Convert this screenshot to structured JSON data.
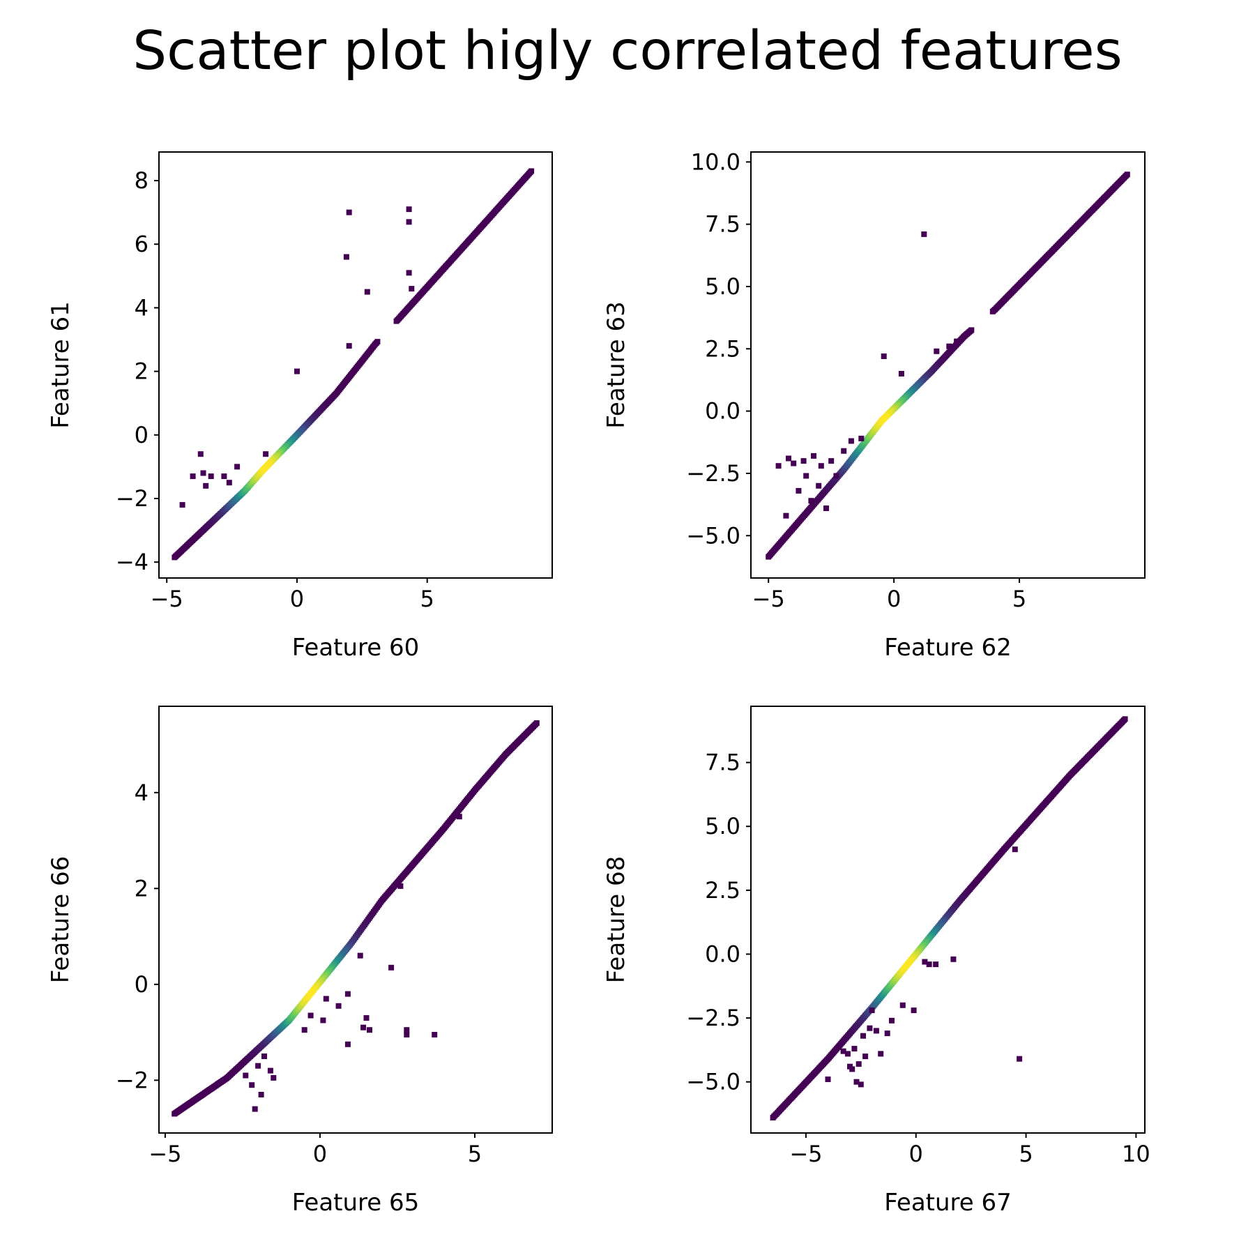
{
  "figure": {
    "suptitle": "Scatter plot higly correlated features"
  },
  "colormap": [
    "#440154",
    "#3b528b",
    "#21918c",
    "#5ec962",
    "#fde725"
  ],
  "chart_data": [
    {
      "type": "scatter",
      "xlabel": "Feature 60",
      "ylabel": "Feature 61",
      "xlim": [
        -5.3,
        9.8
      ],
      "ylim": [
        -4.5,
        8.9
      ],
      "xticks": [
        -5,
        0,
        5
      ],
      "yticks": [
        -4,
        -2,
        0,
        2,
        4,
        6,
        8
      ],
      "grid": false,
      "main_trend": [
        [
          -4.7,
          -3.85
        ],
        [
          -2.0,
          -1.75
        ],
        [
          -1.3,
          -1.1
        ],
        [
          0.0,
          0.0
        ],
        [
          1.5,
          1.3
        ],
        [
          3.0,
          2.85
        ],
        [
          3.9,
          3.65
        ],
        [
          9.0,
          8.3
        ]
      ],
      "gap_x": [
        3.1,
        3.8
      ],
      "density_peak_x": -1.2,
      "outliers": [
        [
          -4.4,
          -2.2
        ],
        [
          -4.0,
          -1.3
        ],
        [
          -3.7,
          -0.6
        ],
        [
          -3.6,
          -1.2
        ],
        [
          -3.5,
          -1.6
        ],
        [
          -3.3,
          -1.3
        ],
        [
          -2.8,
          -1.3
        ],
        [
          -2.6,
          -1.5
        ],
        [
          -2.3,
          -1.0
        ],
        [
          -1.2,
          -0.6
        ],
        [
          0.0,
          2.0
        ],
        [
          1.9,
          5.6
        ],
        [
          2.0,
          7.0
        ],
        [
          2.0,
          2.8
        ],
        [
          2.7,
          4.5
        ],
        [
          4.3,
          7.1
        ],
        [
          4.3,
          6.7
        ],
        [
          4.3,
          5.1
        ],
        [
          4.4,
          4.6
        ]
      ]
    },
    {
      "type": "scatter",
      "xlabel": "Feature 62",
      "ylabel": "Feature 63",
      "xlim": [
        -5.7,
        10.0
      ],
      "ylim": [
        -6.7,
        10.4
      ],
      "xticks": [
        -5,
        0,
        5
      ],
      "yticks": [
        -5.0,
        -2.5,
        0.0,
        2.5,
        5.0,
        7.5,
        10.0
      ],
      "grid": false,
      "main_trend": [
        [
          -5.0,
          -5.85
        ],
        [
          -2.0,
          -2.35
        ],
        [
          -0.5,
          -0.4
        ],
        [
          0.0,
          0.1
        ],
        [
          1.5,
          1.6
        ],
        [
          2.8,
          3.0
        ],
        [
          4.0,
          4.05
        ],
        [
          9.3,
          9.5
        ]
      ],
      "gap_x": [
        3.1,
        3.9
      ],
      "density_peak_x": -0.4,
      "outliers": [
        [
          -4.6,
          -2.2
        ],
        [
          -4.3,
          -4.2
        ],
        [
          -4.2,
          -1.9
        ],
        [
          -4.0,
          -2.1
        ],
        [
          -3.8,
          -3.2
        ],
        [
          -3.6,
          -2.0
        ],
        [
          -3.5,
          -2.6
        ],
        [
          -3.3,
          -3.6
        ],
        [
          -3.2,
          -1.8
        ],
        [
          -3.0,
          -3.0
        ],
        [
          -2.9,
          -2.2
        ],
        [
          -2.7,
          -3.9
        ],
        [
          -2.5,
          -2.0
        ],
        [
          -2.3,
          -2.6
        ],
        [
          -2.0,
          -1.6
        ],
        [
          -1.7,
          -1.2
        ],
        [
          -1.3,
          -1.1
        ],
        [
          -0.4,
          2.2
        ],
        [
          0.3,
          1.5
        ],
        [
          1.2,
          7.1
        ],
        [
          1.7,
          2.4
        ],
        [
          2.2,
          2.6
        ],
        [
          2.5,
          2.8
        ]
      ]
    },
    {
      "type": "scatter",
      "xlabel": "Feature 65",
      "ylabel": "Feature 66",
      "xlim": [
        -5.2,
        7.5
      ],
      "ylim": [
        -3.1,
        5.8
      ],
      "xticks": [
        -5,
        0,
        5
      ],
      "yticks": [
        -2,
        0,
        2,
        4
      ],
      "grid": false,
      "main_trend": [
        [
          -4.7,
          -2.7
        ],
        [
          -3.0,
          -1.95
        ],
        [
          -2.0,
          -1.35
        ],
        [
          -1.0,
          -0.75
        ],
        [
          0.0,
          0.05
        ],
        [
          1.0,
          0.85
        ],
        [
          2.0,
          1.75
        ],
        [
          3.0,
          2.5
        ],
        [
          4.0,
          3.25
        ],
        [
          5.0,
          4.05
        ],
        [
          6.0,
          4.8
        ],
        [
          7.0,
          5.45
        ]
      ],
      "gap_x": null,
      "density_peak_x": -0.3,
      "outliers": [
        [
          -2.4,
          -1.9
        ],
        [
          -2.2,
          -2.1
        ],
        [
          -2.1,
          -2.6
        ],
        [
          -2.0,
          -1.7
        ],
        [
          -1.9,
          -2.3
        ],
        [
          -1.8,
          -1.5
        ],
        [
          -1.6,
          -1.8
        ],
        [
          -1.5,
          -1.95
        ],
        [
          -0.5,
          -0.95
        ],
        [
          -0.3,
          -0.65
        ],
        [
          0.1,
          -0.75
        ],
        [
          0.2,
          -0.3
        ],
        [
          0.6,
          -0.45
        ],
        [
          0.9,
          -0.2
        ],
        [
          1.3,
          0.6
        ],
        [
          0.9,
          -1.25
        ],
        [
          1.4,
          -0.9
        ],
        [
          1.5,
          -0.7
        ],
        [
          1.6,
          -0.95
        ],
        [
          2.3,
          0.35
        ],
        [
          2.6,
          2.05
        ],
        [
          2.8,
          -0.95
        ],
        [
          2.8,
          -1.05
        ],
        [
          3.7,
          -1.05
        ],
        [
          4.5,
          3.5
        ]
      ]
    },
    {
      "type": "scatter",
      "xlabel": "Feature 67",
      "ylabel": "Feature 68",
      "xlim": [
        -7.5,
        10.4
      ],
      "ylim": [
        -7.0,
        9.7
      ],
      "xticks": [
        -5,
        0,
        5,
        10
      ],
      "yticks": [
        -5.0,
        -2.5,
        0.0,
        2.5,
        5.0,
        7.5
      ],
      "grid": false,
      "main_trend": [
        [
          -6.5,
          -6.4
        ],
        [
          -4.0,
          -4.1
        ],
        [
          -2.0,
          -2.1
        ],
        [
          0.0,
          0.0
        ],
        [
          2.0,
          2.1
        ],
        [
          4.0,
          4.1
        ],
        [
          7.0,
          7.0
        ],
        [
          9.5,
          9.2
        ]
      ],
      "gap_x": null,
      "density_peak_x": -0.4,
      "outliers": [
        [
          -4.0,
          -4.9
        ],
        [
          -3.3,
          -3.8
        ],
        [
          -3.1,
          -3.9
        ],
        [
          -3.0,
          -4.4
        ],
        [
          -2.9,
          -4.5
        ],
        [
          -2.8,
          -3.7
        ],
        [
          -2.7,
          -5.0
        ],
        [
          -2.6,
          -4.3
        ],
        [
          -2.5,
          -5.1
        ],
        [
          -2.4,
          -3.2
        ],
        [
          -2.3,
          -4.0
        ],
        [
          -2.1,
          -2.9
        ],
        [
          -2.0,
          -2.2
        ],
        [
          -1.8,
          -3.0
        ],
        [
          -1.6,
          -3.9
        ],
        [
          -1.3,
          -3.1
        ],
        [
          -1.1,
          -2.6
        ],
        [
          -0.6,
          -2.0
        ],
        [
          0.4,
          -0.3
        ],
        [
          0.6,
          -0.4
        ],
        [
          0.9,
          -0.4
        ],
        [
          1.7,
          -0.2
        ],
        [
          -0.1,
          -2.2
        ],
        [
          4.7,
          -4.1
        ],
        [
          4.5,
          4.1
        ]
      ]
    }
  ]
}
